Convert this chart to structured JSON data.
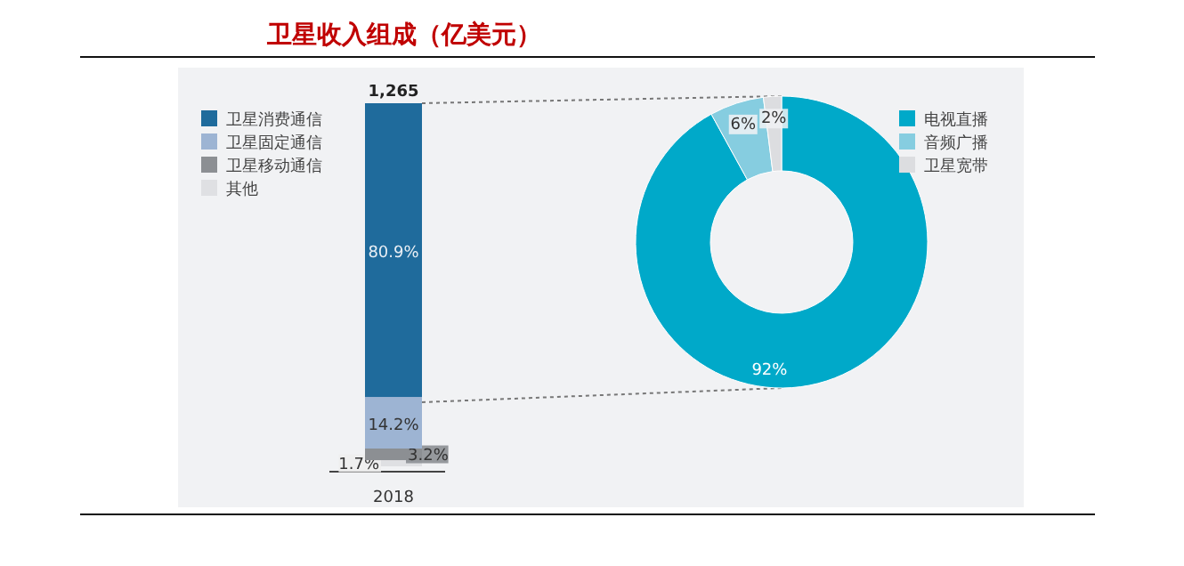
{
  "chart_data": [
    {
      "type": "bar",
      "title": "卫星收入组成（亿美元）",
      "categories": [
        "2018"
      ],
      "stacked": true,
      "legend": "top left",
      "annotations": [
        {
          "text": "1,265",
          "x": "2018",
          "y": 100
        }
      ],
      "series": [
        {
          "name": "其他",
          "color": "#dfe0e3",
          "values": [
            1.7
          ],
          "value_labels": [
            "1.7%"
          ]
        },
        {
          "name": "卫星移动通信",
          "color": "#8c8f93",
          "values": [
            3.2
          ],
          "value_labels": [
            "3.2%"
          ]
        },
        {
          "name": "卫星固定通信",
          "color": "#9db4d3",
          "values": [
            14.2
          ],
          "value_labels": [
            "14.2%"
          ]
        },
        {
          "name": "卫星消费通信",
          "color": "#1f6b9c",
          "values": [
            80.9
          ],
          "value_labels": [
            "80.9%"
          ]
        }
      ]
    },
    {
      "type": "donut",
      "legend": "top right",
      "categories": [
        "电视直播",
        "音频广播",
        "卫星宽带"
      ],
      "values": [
        92,
        6,
        2
      ],
      "colors": [
        "#00a9c9",
        "#86cde0",
        "#dcdde0"
      ],
      "value_labels": [
        "92%",
        "6%",
        "2%"
      ]
    }
  ]
}
